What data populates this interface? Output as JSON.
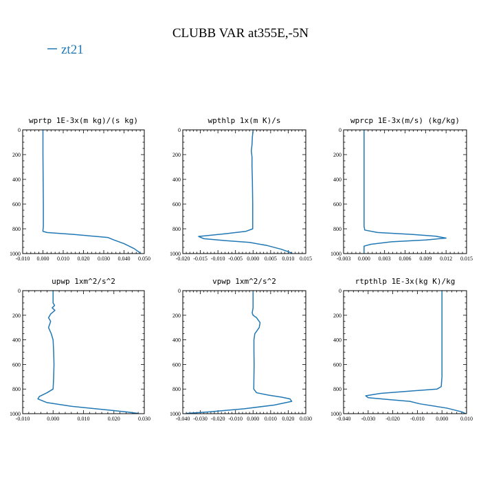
{
  "figure": {
    "title": "CLUBB VAR at355E,-5N",
    "legend": [
      {
        "label": "zt21",
        "color": "#1f77b4"
      }
    ]
  },
  "chart_data": [
    {
      "type": "line",
      "title": "wprtp  1E-3x(m kg)/(s kg)",
      "xlim": [
        -0.01,
        0.05
      ],
      "ylim": [
        1000,
        0
      ],
      "y_inverted": true,
      "xticks": [
        -0.01,
        0.0,
        0.01,
        0.02,
        0.03,
        0.04,
        0.05
      ],
      "xtick_labels": [
        "-0.010",
        "0.000",
        "0.010",
        "0.020",
        "0.030",
        "0.040",
        "0.050"
      ],
      "yticks": [
        0,
        200,
        400,
        600,
        800,
        1000
      ],
      "ytick_labels": [
        "0",
        "200",
        "400",
        "600",
        "800",
        "1000"
      ],
      "series": [
        {
          "name": "zt21",
          "color": "#1f77b4",
          "x": [
            0.0,
            0.0,
            0.0001,
            0.0002,
            0.0002,
            0.0002,
            0.0001,
            0.0,
            0.0,
            0.002,
            0.015,
            0.025,
            0.032,
            0.035,
            0.04,
            0.045,
            0.048
          ],
          "y": [
            0,
            200,
            400,
            600,
            700,
            780,
            800,
            810,
            820,
            830,
            845,
            860,
            870,
            890,
            920,
            960,
            995
          ]
        }
      ]
    },
    {
      "type": "line",
      "title": "wpthlp  1x(m K)/s",
      "xlim": [
        -0.02,
        0.015
      ],
      "ylim": [
        1000,
        0
      ],
      "y_inverted": true,
      "xticks": [
        -0.02,
        -0.015,
        -0.01,
        -0.005,
        0.0,
        0.005,
        0.01,
        0.015
      ],
      "xtick_labels": [
        "-0.020",
        "-0.015",
        "-0.010",
        "-0.005",
        "0.000",
        "0.005",
        "0.010",
        "0.015"
      ],
      "yticks": [
        0,
        200,
        400,
        600,
        800,
        1000
      ],
      "ytick_labels": [
        "0",
        "200",
        "400",
        "600",
        "800",
        "1000"
      ],
      "series": [
        {
          "name": "zt21",
          "color": "#1f77b4",
          "x": [
            0.0,
            -0.0002,
            -0.0003,
            -0.0005,
            -0.0003,
            -0.0003,
            -0.0002,
            -0.0001,
            -0.0001,
            -0.0001,
            -0.002,
            -0.008,
            -0.0155,
            -0.014,
            -0.008,
            -0.001,
            0.004,
            0.008,
            0.011
          ],
          "y": [
            0,
            60,
            120,
            170,
            220,
            300,
            400,
            600,
            700,
            800,
            820,
            840,
            862,
            880,
            895,
            910,
            935,
            965,
            995
          ]
        }
      ]
    },
    {
      "type": "line",
      "title": "wprcp  1E-3x(m/s) (kg/kg)",
      "xlim": [
        -0.003,
        0.015
      ],
      "ylim": [
        1000,
        0
      ],
      "y_inverted": true,
      "xticks": [
        -0.003,
        0.0,
        0.003,
        0.006,
        0.009,
        0.012,
        0.015
      ],
      "xtick_labels": [
        "-0.003",
        "0.000",
        "0.003",
        "0.006",
        "0.009",
        "0.012",
        "0.015"
      ],
      "yticks": [
        0,
        200,
        400,
        600,
        800,
        1000
      ],
      "ytick_labels": [
        "0",
        "200",
        "400",
        "600",
        "800",
        "1000"
      ],
      "series": [
        {
          "name": "zt21",
          "color": "#1f77b4",
          "x": [
            0.0,
            0.0,
            0.0,
            0.0,
            0.0,
            0.0001,
            0.002,
            0.007,
            0.0105,
            0.012,
            0.009,
            0.004,
            0.001,
            0.0,
            0.0,
            0.0
          ],
          "y": [
            0,
            200,
            400,
            600,
            780,
            810,
            830,
            845,
            860,
            875,
            890,
            905,
            925,
            940,
            960,
            995
          ]
        }
      ]
    },
    {
      "type": "line",
      "title": "upwp  1xm^2/s^2",
      "xlim": [
        -0.01,
        0.03
      ],
      "ylim": [
        1000,
        0
      ],
      "y_inverted": true,
      "xticks": [
        -0.01,
        0.0,
        0.01,
        0.02,
        0.03
      ],
      "xtick_labels": [
        "-0.010",
        "0.000",
        "0.010",
        "0.020",
        "0.030"
      ],
      "yticks": [
        0,
        200,
        400,
        600,
        800,
        1000
      ],
      "ytick_labels": [
        "0",
        "200",
        "400",
        "600",
        "800",
        "1000"
      ],
      "series": [
        {
          "name": "zt21",
          "color": "#1f77b4",
          "x": [
            0.0,
            0.0,
            0.0005,
            -0.0003,
            0.0006,
            -0.0008,
            -0.0015,
            -0.0008,
            -0.0015,
            -0.0006,
            0.0,
            0.0002,
            0.0003,
            0.0002,
            0.0,
            -0.002,
            -0.0045,
            -0.005,
            -0.002,
            0.006,
            0.016,
            0.024,
            0.028
          ],
          "y": [
            0,
            100,
            120,
            140,
            160,
            190,
            220,
            250,
            300,
            350,
            400,
            500,
            600,
            700,
            800,
            830,
            860,
            880,
            910,
            940,
            965,
            985,
            998
          ]
        }
      ]
    },
    {
      "type": "line",
      "title": "vpwp  1xm^2/s^2",
      "xlim": [
        -0.04,
        0.03
      ],
      "ylim": [
        1000,
        0
      ],
      "y_inverted": true,
      "xticks": [
        -0.04,
        -0.03,
        -0.02,
        -0.01,
        0.0,
        0.01,
        0.02,
        0.03
      ],
      "xtick_labels": [
        "-0.040",
        "-0.030",
        "-0.020",
        "-0.010",
        "0.000",
        "0.010",
        "0.020",
        "0.030"
      ],
      "yticks": [
        0,
        200,
        400,
        600,
        800,
        1000
      ],
      "ytick_labels": [
        "0",
        "200",
        "400",
        "600",
        "800",
        "1000"
      ],
      "series": [
        {
          "name": "zt21",
          "color": "#1f77b4",
          "x": [
            0.0,
            0.0,
            0.0,
            -0.0005,
            0.0,
            0.002,
            0.004,
            0.0035,
            0.001,
            0.0005,
            0.0005,
            0.0006,
            0.0004,
            0.002,
            0.009,
            0.016,
            0.021,
            0.022,
            0.012,
            -0.005,
            -0.025,
            -0.038
          ],
          "y": [
            0,
            100,
            140,
            180,
            200,
            220,
            260,
            300,
            350,
            400,
            500,
            600,
            800,
            830,
            850,
            865,
            880,
            900,
            930,
            960,
            985,
            998
          ]
        }
      ]
    },
    {
      "type": "line",
      "title": "rtpthlp  1E-3x(kg K)/kg",
      "xlim": [
        -0.04,
        0.01
      ],
      "ylim": [
        1000,
        0
      ],
      "y_inverted": true,
      "xticks": [
        -0.04,
        -0.03,
        -0.02,
        -0.01,
        0.0,
        0.01
      ],
      "xtick_labels": [
        "-0.040",
        "-0.030",
        "-0.020",
        "-0.010",
        "0.000",
        "0.010"
      ],
      "yticks": [
        0,
        200,
        400,
        600,
        800,
        1000
      ],
      "ytick_labels": [
        "0",
        "200",
        "400",
        "600",
        "800",
        "1000"
      ],
      "series": [
        {
          "name": "zt21",
          "color": "#1f77b4",
          "x": [
            0.0,
            0.0,
            0.0,
            -0.0003,
            -0.002,
            -0.012,
            -0.025,
            -0.031,
            -0.03,
            -0.022,
            -0.013,
            -0.009,
            0.002,
            0.008,
            0.0095
          ],
          "y": [
            0,
            400,
            700,
            780,
            800,
            815,
            835,
            855,
            870,
            885,
            900,
            920,
            955,
            985,
            998
          ]
        }
      ]
    }
  ]
}
